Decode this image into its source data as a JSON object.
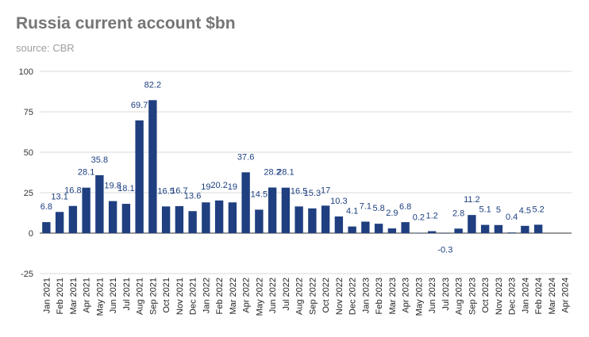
{
  "title": "Russia current account $bn",
  "subtitle": "source: CBR",
  "chart_data": {
    "type": "bar",
    "title": "Russia current account $bn",
    "subtitle": "source: CBR",
    "xlabel": "",
    "ylabel": "",
    "ylim": [
      -25,
      100
    ],
    "yticks": [
      -25,
      0,
      25,
      50,
      75,
      100
    ],
    "grid": true,
    "bar_color": "#1f3f80",
    "categories": [
      "Jan 2021",
      "Feb 2021",
      "Mar 2021",
      "Apr 2021",
      "May 2021",
      "Jun 2021",
      "Jul 2021",
      "Aug 2021",
      "Sep 2021",
      "Oct 2021",
      "Nov 2021",
      "Dec 2021",
      "Jan 2022",
      "Feb 2022",
      "Mar 2022",
      "Apr 2022",
      "May 2022",
      "Jun 2022",
      "Jul 2022",
      "Aug 2022",
      "Sep 2022",
      "Oct 2022",
      "Nov 2022",
      "Dec 2022",
      "Jan 2023",
      "Feb 2023",
      "Mar 2023",
      "Apr 2023",
      "May 2023",
      "Jun 2023",
      "Jul 2023",
      "Aug 2023",
      "Sep 2023",
      "Oct 2023",
      "Nov 2023",
      "Dec 2023",
      "Jan 2024",
      "Feb 2024",
      "Mar 2024",
      "Apr 2024"
    ],
    "values": [
      6.8,
      13.1,
      16.8,
      28.1,
      35.8,
      19.8,
      18.1,
      69.7,
      82.2,
      16.5,
      16.7,
      13.6,
      19,
      20.2,
      19,
      37.6,
      14.5,
      28.2,
      28.1,
      16.5,
      15.3,
      17,
      10.3,
      4.1,
      7.1,
      5.8,
      2.9,
      6.8,
      0.2,
      1.2,
      -0.3,
      2.8,
      11.2,
      5.1,
      5,
      0.4,
      4.5,
      5.2,
      null,
      null
    ],
    "data_labels": [
      "6.8",
      "13.1",
      "16.8",
      "28.1",
      "35.8",
      "19.8",
      "18.1",
      "69.7",
      "82.2",
      "16.5",
      "16.7",
      "13.6",
      "19",
      "20.2",
      "19",
      "37.6",
      "14.5",
      "28.2",
      "28.1",
      "16.5",
      "15.3",
      "17",
      "10.3",
      "4.1",
      "7.1",
      "5.8",
      "2.9",
      "6.8",
      "0.2",
      "1.2",
      "-0.3",
      "2.8",
      "11.2",
      "5.1",
      "5",
      "0.4",
      "4.5",
      "5.2",
      "",
      ""
    ]
  }
}
